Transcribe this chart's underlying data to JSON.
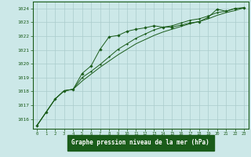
{
  "xlabel": "Graphe pression niveau de la mer (hPa)",
  "xlim": [
    -0.5,
    23.5
  ],
  "ylim": [
    1015.3,
    1024.5
  ],
  "yticks": [
    1016,
    1017,
    1018,
    1019,
    1020,
    1021,
    1022,
    1023,
    1024
  ],
  "xticks": [
    0,
    1,
    2,
    3,
    4,
    5,
    6,
    7,
    8,
    9,
    10,
    11,
    12,
    13,
    14,
    15,
    16,
    17,
    18,
    19,
    20,
    21,
    22,
    23
  ],
  "bg_color": "#cce8e8",
  "grid_color": "#aacccc",
  "line_color": "#1a5c1a",
  "marker_color": "#1a5c1a",
  "label_bg": "#1a5c1a",
  "series1_x": [
    0,
    1,
    2,
    3,
    4,
    5,
    6,
    7,
    8,
    9,
    10,
    11,
    12,
    13,
    14,
    15,
    16,
    17,
    18,
    19,
    20,
    21,
    22,
    23
  ],
  "series1_y": [
    1015.55,
    1016.5,
    1017.45,
    1018.05,
    1018.15,
    1019.3,
    1019.85,
    1021.05,
    1021.95,
    1022.05,
    1022.35,
    1022.5,
    1022.6,
    1022.75,
    1022.65,
    1022.65,
    1022.8,
    1022.95,
    1023.05,
    1023.35,
    1023.95,
    1023.8,
    1024.0,
    1024.05
  ],
  "series2_x": [
    0,
    1,
    2,
    3,
    4,
    5,
    6,
    7,
    8,
    9,
    10,
    11,
    12,
    13,
    14,
    15,
    16,
    17,
    18,
    19,
    20,
    21,
    22,
    23
  ],
  "series2_y": [
    1015.55,
    1016.5,
    1017.45,
    1018.05,
    1018.15,
    1018.75,
    1019.25,
    1019.75,
    1020.2,
    1020.65,
    1021.05,
    1021.45,
    1021.75,
    1022.05,
    1022.3,
    1022.5,
    1022.7,
    1022.9,
    1023.05,
    1023.25,
    1023.5,
    1023.7,
    1023.85,
    1024.05
  ],
  "series3_x": [
    0,
    1,
    2,
    3,
    4,
    5,
    6,
    7,
    8,
    9,
    10,
    11,
    12,
    13,
    14,
    15,
    16,
    17,
    18,
    19,
    20,
    21,
    22,
    23
  ],
  "series3_y": [
    1015.55,
    1016.5,
    1017.45,
    1018.05,
    1018.15,
    1019.0,
    1019.45,
    1019.95,
    1020.5,
    1021.05,
    1021.45,
    1021.85,
    1022.15,
    1022.45,
    1022.65,
    1022.75,
    1022.95,
    1023.15,
    1023.25,
    1023.45,
    1023.7,
    1023.8,
    1024.0,
    1024.05
  ]
}
